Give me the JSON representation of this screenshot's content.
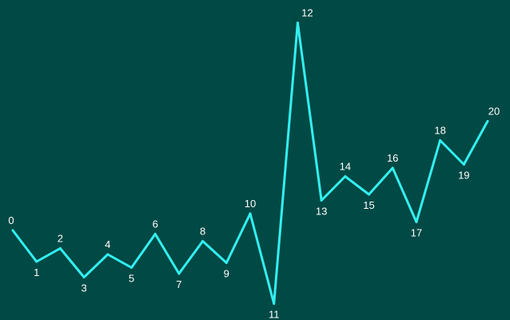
{
  "colors": {
    "background": "#004945",
    "line": "#33f0f0",
    "label": "#ffffff"
  },
  "chart_data": {
    "type": "line",
    "title": "",
    "xlabel": "",
    "ylabel": "",
    "grid": false,
    "legend": "none",
    "x": [
      0,
      1,
      2,
      3,
      4,
      5,
      6,
      7,
      8,
      9,
      10,
      11,
      12,
      13,
      14,
      15,
      16,
      17,
      18,
      19,
      20
    ],
    "series": [
      {
        "values": [
          60,
          34,
          45,
          21,
          40,
          29,
          57,
          24,
          51,
          33,
          74,
          -1,
          233,
          85,
          105,
          90,
          112,
          67,
          135,
          115,
          151
        ]
      }
    ],
    "labels": [
      "0",
      "1",
      "2",
      "3",
      "4",
      "5",
      "6",
      "7",
      "8",
      "9",
      "10",
      "11",
      "12",
      "13",
      "14",
      "15",
      "16",
      "17",
      "18",
      "19",
      "20"
    ]
  }
}
